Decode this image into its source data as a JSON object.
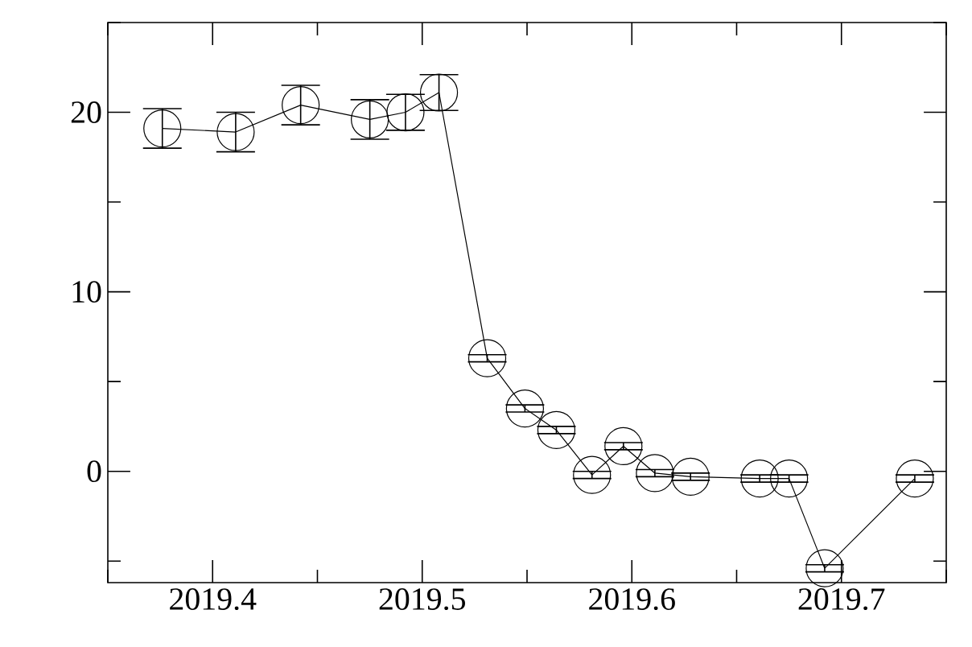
{
  "chart_data": {
    "type": "line",
    "x": [
      2019.376,
      2019.411,
      2019.442,
      2019.475,
      2019.492,
      2019.508,
      2019.531,
      2019.549,
      2019.564,
      2019.581,
      2019.596,
      2019.611,
      2019.628,
      2019.661,
      2019.675,
      2019.692,
      2019.735
    ],
    "values": [
      19.1,
      18.9,
      20.4,
      19.6,
      20.0,
      21.1,
      6.3,
      3.5,
      2.3,
      -0.2,
      1.4,
      -0.1,
      -0.3,
      -0.4,
      -0.4,
      -5.4,
      -0.4
    ],
    "errors": [
      1.1,
      1.1,
      1.1,
      1.1,
      1.0,
      1.0,
      0.2,
      0.2,
      0.2,
      0.2,
      0.2,
      0.2,
      0.2,
      0.2,
      0.2,
      0.2,
      0.2
    ],
    "color": "#000000",
    "marker": "circle",
    "line_style": "solid",
    "xlim": [
      2019.35,
      2019.75
    ],
    "xticks": [
      {
        "value": 2019.35,
        "label": null
      },
      2019.4,
      {
        "value": 2019.45,
        "label": null
      },
      2019.5,
      {
        "value": 2019.55,
        "label": null
      },
      2019.6,
      {
        "value": 2019.65,
        "label": null
      },
      2019.7,
      {
        "value": 2019.75,
        "label": null
      }
    ],
    "ylim": [
      -6.2,
      25
    ],
    "yticks": [
      {
        "value": -5,
        "label": null
      },
      0,
      {
        "value": 5,
        "label": null
      },
      10,
      {
        "value": 15,
        "label": null
      },
      20,
      {
        "value": 25,
        "label": null
      }
    ]
  }
}
